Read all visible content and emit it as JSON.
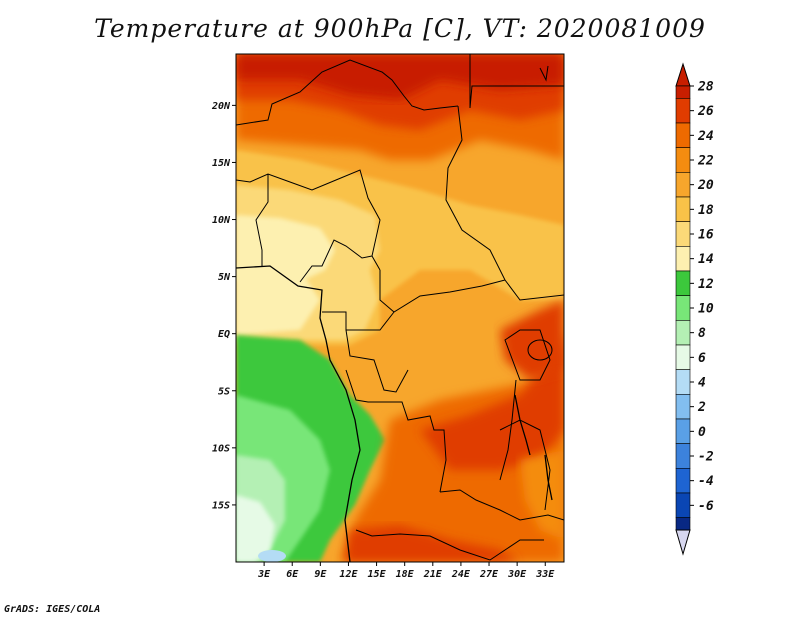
{
  "title": "Temperature at 900hPa [C], VT: 2020081009",
  "credit": "GrADS: IGES/COLA",
  "map": {
    "lon_range": [
      0,
      35
    ],
    "lat_range": [
      -20,
      24.5
    ],
    "x_ticks": [
      {
        "value": 3,
        "label": "3E"
      },
      {
        "value": 6,
        "label": "6E"
      },
      {
        "value": 9,
        "label": "9E"
      },
      {
        "value": 12,
        "label": "12E"
      },
      {
        "value": 15,
        "label": "15E"
      },
      {
        "value": 18,
        "label": "18E"
      },
      {
        "value": 21,
        "label": "21E"
      },
      {
        "value": 24,
        "label": "24E"
      },
      {
        "value": 27,
        "label": "27E"
      },
      {
        "value": 30,
        "label": "30E"
      },
      {
        "value": 33,
        "label": "33E"
      }
    ],
    "y_ticks": [
      {
        "value": 20,
        "label": "20N"
      },
      {
        "value": 15,
        "label": "15N"
      },
      {
        "value": 10,
        "label": "10N"
      },
      {
        "value": 5,
        "label": "5N"
      },
      {
        "value": 0,
        "label": "EQ"
      },
      {
        "value": -5,
        "label": "5S"
      },
      {
        "value": -10,
        "label": "10S"
      },
      {
        "value": -15,
        "label": "15S"
      }
    ]
  },
  "colorbar": {
    "labels": [
      "28",
      "26",
      "24",
      "22",
      "20",
      "18",
      "16",
      "14",
      "12",
      "10",
      "8",
      "6",
      "4",
      "2",
      "0",
      "-2",
      "-4",
      "-6"
    ],
    "colors_top_to_bottom": [
      "#c81e00",
      "#e03c00",
      "#ee6a00",
      "#f48c10",
      "#f7a62c",
      "#f9c248",
      "#fbd978",
      "#fdf0b0",
      "#3cc83c",
      "#78e678",
      "#b4f0b4",
      "#e6fae6",
      "#b4dcf5",
      "#82bef0",
      "#5aa0e6",
      "#3c82dc",
      "#1e64d2",
      "#0a46b4",
      "#082884"
    ],
    "over_color": "#c81e00",
    "under_color": "#d8d8f0"
  }
}
